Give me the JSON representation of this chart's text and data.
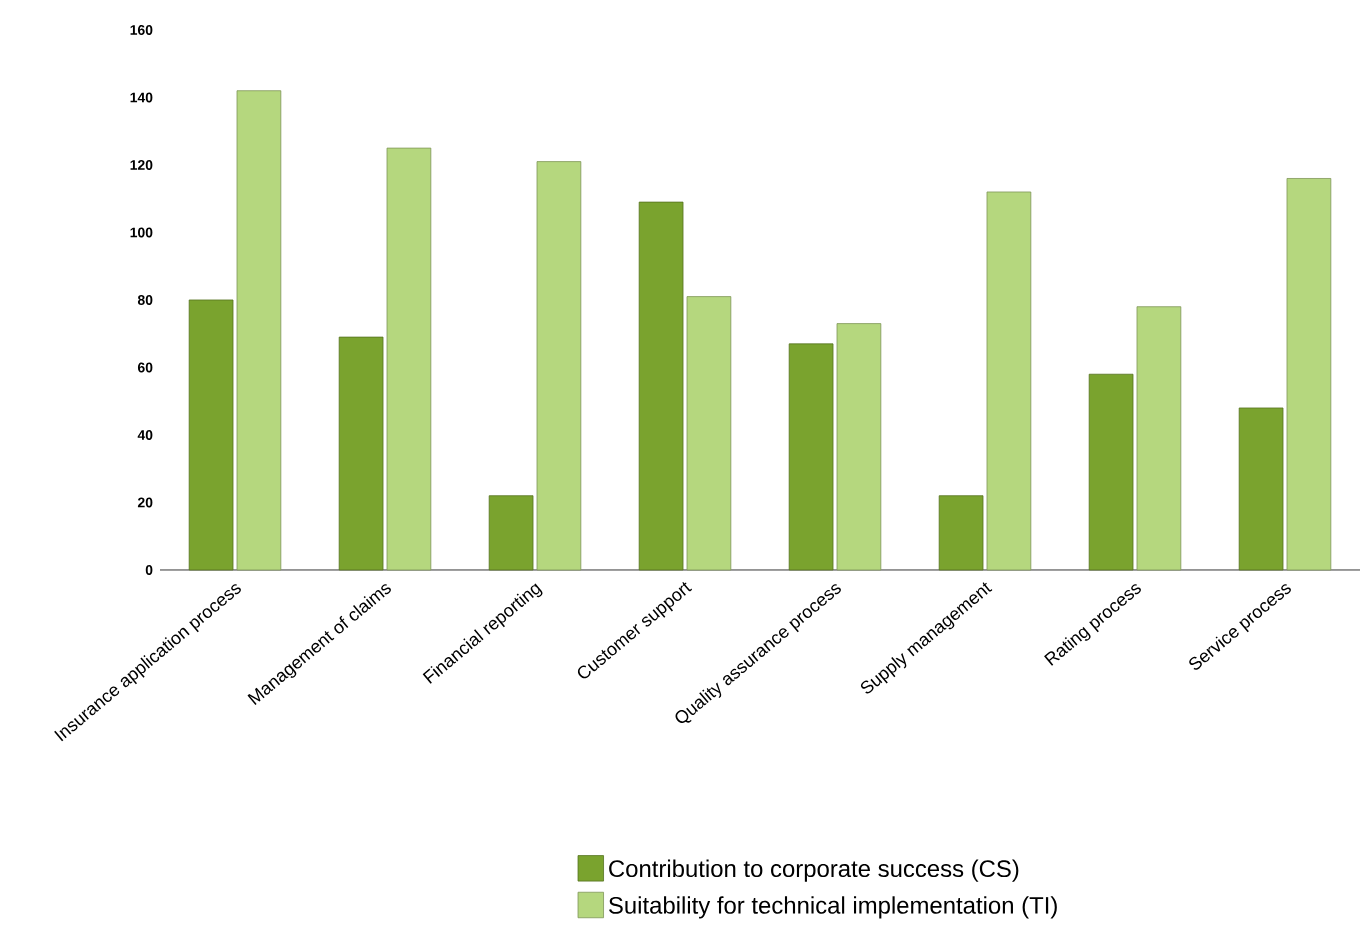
{
  "chart_data": {
    "type": "bar",
    "categories": [
      "Insurance application process",
      "Management of claims",
      "Financial reporting",
      "Customer support",
      "Quality assurance process",
      "Supply management",
      "Rating process",
      "Service process"
    ],
    "series": [
      {
        "name": "Contribution to corporate success (CS)",
        "color": "#7aa32e",
        "values": [
          80,
          69,
          22,
          109,
          67,
          22,
          58,
          48
        ]
      },
      {
        "name": "Suitability for technical implementation (TI)",
        "color": "#b5d77e",
        "values": [
          142,
          125,
          121,
          81,
          73,
          112,
          78,
          116
        ]
      }
    ],
    "ylim": [
      0,
      160
    ],
    "yticks": [
      0,
      20,
      40,
      60,
      80,
      100,
      120,
      140,
      160
    ],
    "grid": false,
    "legend": "bottom"
  }
}
